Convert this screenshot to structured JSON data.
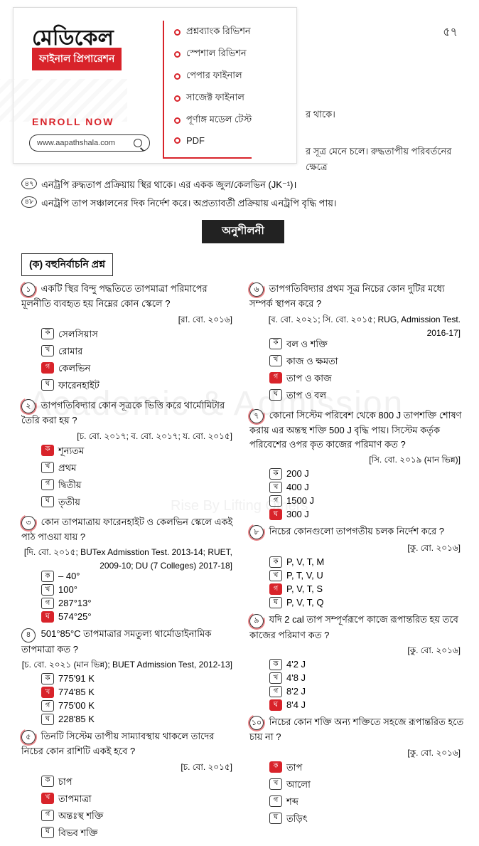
{
  "header": {
    "title": "মেডিকেল",
    "subtitle": "ফাইনাল প্রিপারেশন",
    "enroll": "ENROLL NOW",
    "url": "www.aapathshala.com",
    "features": [
      "প্রশ্নব্যাংক রিভিশন",
      "স্পেশাল রিভিশন",
      "পেপার ফাইনাল",
      "সাজেক্ট ফাইনাল",
      "পূর্ণাঙ্গ মডেল টেস্ট",
      "PDF"
    ]
  },
  "page_number": "৫৭",
  "bg_lines": [
    "র থাকে।",
    "র সূত্র মেনে চলে। রুদ্ধতাপীয় পরিবর্তনের ক্ষেত্রে"
  ],
  "watermark": "Academic & Admission",
  "watermark_sub": "Rise By Lifting Others",
  "pre_lines": [
    {
      "n": "৪৭",
      "t": "এনট্রপি রুদ্ধতাপ প্রক্রিয়ায় স্থির থাকে। এর একক জুল/কেলভিন (JK⁻¹)।"
    },
    {
      "n": "৪৮",
      "t": "এনট্রপি তাপ সঞ্চালনের দিক নির্দেশ করে। অপ্রত্যাবর্তী প্রক্রিয়ায় এনট্রপি বৃদ্ধি পায়।"
    }
  ],
  "exercise_label": "অনুশীলনী",
  "mcq_label": "(ক) বহুনির্বাচনি প্রশ্ন",
  "left": [
    {
      "n": "১",
      "mark": true,
      "q": "একটি স্থির বিন্দু পদ্ধতিতে তাপমাত্রা পরিমাপের মূলনীতি ব্যবহৃত হয় নিম্নের কোন স্কেলে ?",
      "src": "[রা. বো. ২০১৬]",
      "opts": [
        {
          "l": "ক",
          "t": "সেলসিয়াস"
        },
        {
          "l": "খ",
          "t": "রোমার"
        },
        {
          "l": "গ",
          "t": "কেলভিন",
          "ans": true
        },
        {
          "l": "ঘ",
          "t": "ফারেনহাইট"
        }
      ]
    },
    {
      "n": "২",
      "mark": true,
      "q": "তাপগতিবিদ্যার কোন সূত্রকে ভিত্তি করে থার্মোমিটার তৈরি করা হয় ?",
      "src": "[চ. বো. ২০১৭; ব. বো. ২০১৭; য. বো. ২০১৫]",
      "opts": [
        {
          "l": "ক",
          "t": "শূন্যতম",
          "ans": true
        },
        {
          "l": "খ",
          "t": "প্রথম"
        },
        {
          "l": "গ",
          "t": "দ্বিতীয়"
        },
        {
          "l": "ঘ",
          "t": "তৃতীয়"
        }
      ]
    },
    {
      "n": "৩",
      "mark": true,
      "q": "কোন তাপমাত্রায় ফারেনহাইট ও কেলভিন স্কেলে একই পাঠ পাওয়া যায় ?",
      "src": "[দি. বো. ২০১৫; BUTex Admisstion Test. 2013-14; RUET, 2009-10; DU (7 Colleges) 2017-18]",
      "opts": [
        {
          "l": "ক",
          "t": "– 40°"
        },
        {
          "l": "খ",
          "t": "100°"
        },
        {
          "l": "গ",
          "t": "287°13°"
        },
        {
          "l": "ঘ",
          "t": "574°25°",
          "ans": true
        }
      ]
    },
    {
      "n": "৪",
      "mark": false,
      "q": "501°85°C তাপমাত্রার সমতুল্য থার্মোডাইনামিক তাপমাত্রা কত ?",
      "src": "[চ. বো. ২০২১ (মান ভিন্ন); BUET Admission Test, 2012-13]",
      "opts": [
        {
          "l": "ক",
          "t": "775'91 K"
        },
        {
          "l": "খ",
          "t": "774'85 K",
          "ans": true
        },
        {
          "l": "গ",
          "t": "775'00 K"
        },
        {
          "l": "ঘ",
          "t": "228'85 K"
        }
      ]
    },
    {
      "n": "৫",
      "mark": true,
      "q": "তিনটি সিস্টেম তাপীয় সাম্যাবস্থায় থাকলে তাদের নিচের কোন রাশিটি একই হবে ?",
      "src": "[চ. বো. ২০১৫]",
      "opts": [
        {
          "l": "ক",
          "t": "চাপ"
        },
        {
          "l": "খ",
          "t": "তাপমাত্রা",
          "ans": true
        },
        {
          "l": "গ",
          "t": "অন্তঃস্থ শক্তি"
        },
        {
          "l": "ঘ",
          "t": "বিভব শক্তি"
        }
      ]
    }
  ],
  "right": [
    {
      "n": "৬",
      "mark": true,
      "q": "তাপগতিবিদ্যার প্রথম সূত্র নিচের কোন দুটির মধ্যে সম্পর্ক স্থাপন করে ?",
      "src": "[ব. বো. ২০২১; সি. বো. ২০১৫; RUG, Admission Test. 2016-17]",
      "opts": [
        {
          "l": "ক",
          "t": "বল ও শক্তি"
        },
        {
          "l": "খ",
          "t": "কাজ ও ক্ষমতা"
        },
        {
          "l": "গ",
          "t": "তাপ ও কাজ",
          "ans": true
        },
        {
          "l": "ঘ",
          "t": "তাপ ও বল"
        }
      ]
    },
    {
      "n": "৭",
      "mark": true,
      "q": "কোনো সিস্টেম পরিবেশ থেকে 800 J তাপশক্তি শোষণ করায় এর অন্তস্থ শক্তি 500 J বৃদ্ধি পায়। সিস্টেম কর্তৃক পরিবেশের ওপর কৃত কাজের পরিমাণ কত ?",
      "src": "[সি. বো. ২০১৯ (মান ভিন্ন)]",
      "opts": [
        {
          "l": "ক",
          "t": "200 J"
        },
        {
          "l": "খ",
          "t": "400 J"
        },
        {
          "l": "গ",
          "t": "1500 J"
        },
        {
          "l": "ঘ",
          "t": "300 J",
          "ans": true
        }
      ]
    },
    {
      "n": "৮",
      "mark": true,
      "q": "নিচের কোনগুলো তাপগতীয় চলক নির্দেশ করে ?",
      "src": "[কু. বো. ২০১৬]",
      "opts": [
        {
          "l": "ক",
          "t": "P, V, T, M"
        },
        {
          "l": "খ",
          "t": "P, T, V, U"
        },
        {
          "l": "গ",
          "t": "P, V, T, S",
          "ans": true
        },
        {
          "l": "ঘ",
          "t": "P, V, T, Q"
        }
      ]
    },
    {
      "n": "৯",
      "mark": true,
      "q": "যদি 2 cal তাপ সম্পূর্ণরূপে কাজে রূপান্তরিত হয় তবে কাজের পরিমাণ কত ?",
      "src": "[কু. বো. ২০১৬]",
      "opts": [
        {
          "l": "ক",
          "t": "4'2 J"
        },
        {
          "l": "খ",
          "t": "4'8 J"
        },
        {
          "l": "গ",
          "t": "8'2 J"
        },
        {
          "l": "ঘ",
          "t": "8'4 J",
          "ans": true
        }
      ]
    },
    {
      "n": "১০",
      "mark": true,
      "q": "নিচের কোন শক্তি অন্য শক্তিতে সহজে রূপান্তরিত হতে চায় না ?",
      "src": "[কু. বো. ২০১৬]",
      "opts": [
        {
          "l": "ক",
          "t": "তাপ",
          "ans": true
        },
        {
          "l": "খ",
          "t": "আলো"
        },
        {
          "l": "গ",
          "t": "শব্দ"
        },
        {
          "l": "ঘ",
          "t": "তড়িৎ"
        }
      ]
    }
  ]
}
